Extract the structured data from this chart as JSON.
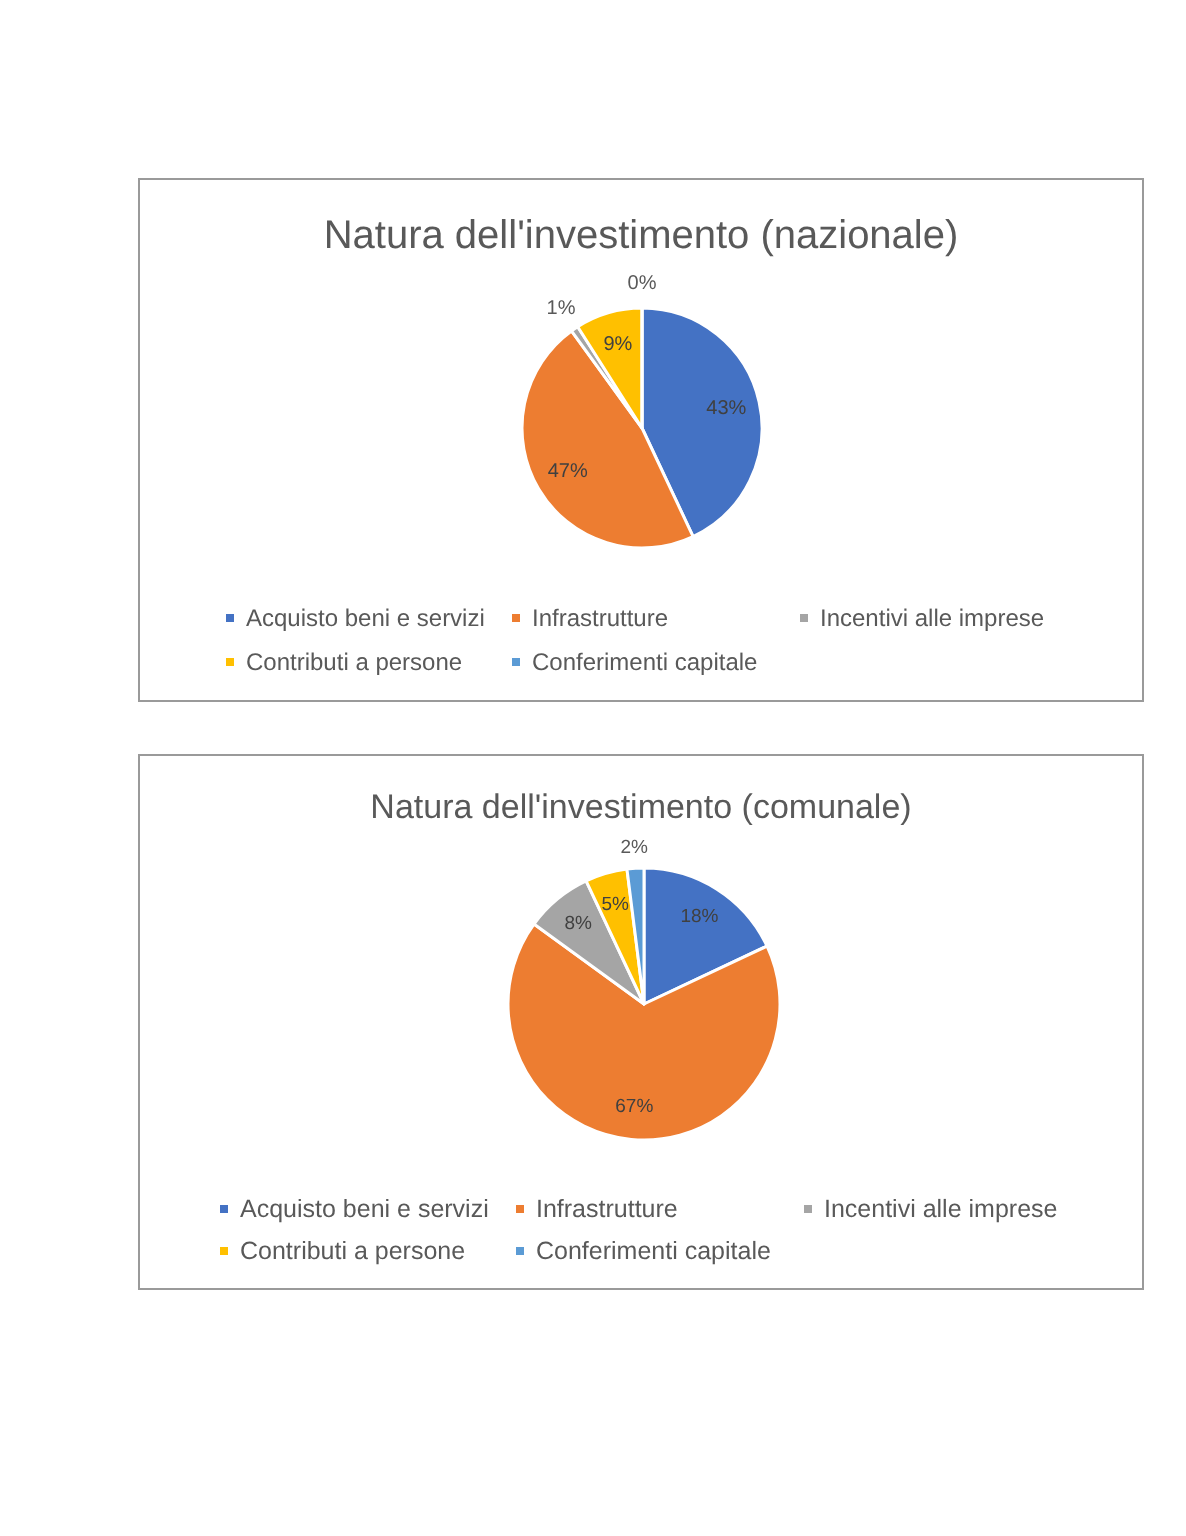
{
  "chart_data": [
    {
      "type": "pie",
      "title": "Natura dell'investimento (nazionale)",
      "categories": [
        "Acquisto beni e servizi",
        "Infrastrutture",
        "Incentivi alle imprese",
        "Contributi a persone",
        "Conferimenti capitale"
      ],
      "values": [
        43,
        47,
        1,
        9,
        0
      ],
      "colors": [
        "#4472c4",
        "#ed7d31",
        "#a5a5a5",
        "#ffc000",
        "#5b9bd5"
      ],
      "value_labels": [
        "43%",
        "47%",
        "1%",
        "9%",
        "0%"
      ],
      "legend": "bottom"
    },
    {
      "type": "pie",
      "title": "Natura dell'investimento (comunale)",
      "categories": [
        "Acquisto beni e servizi",
        "Infrastrutture",
        "Incentivi alle imprese",
        "Contributi a persone",
        "Conferimenti capitale"
      ],
      "values": [
        18,
        67,
        8,
        5,
        2
      ],
      "colors": [
        "#4472c4",
        "#ed7d31",
        "#a5a5a5",
        "#ffc000",
        "#5b9bd5"
      ],
      "value_labels": [
        "18%",
        "67%",
        "8%",
        "5%",
        "2%"
      ],
      "legend": "bottom"
    }
  ]
}
